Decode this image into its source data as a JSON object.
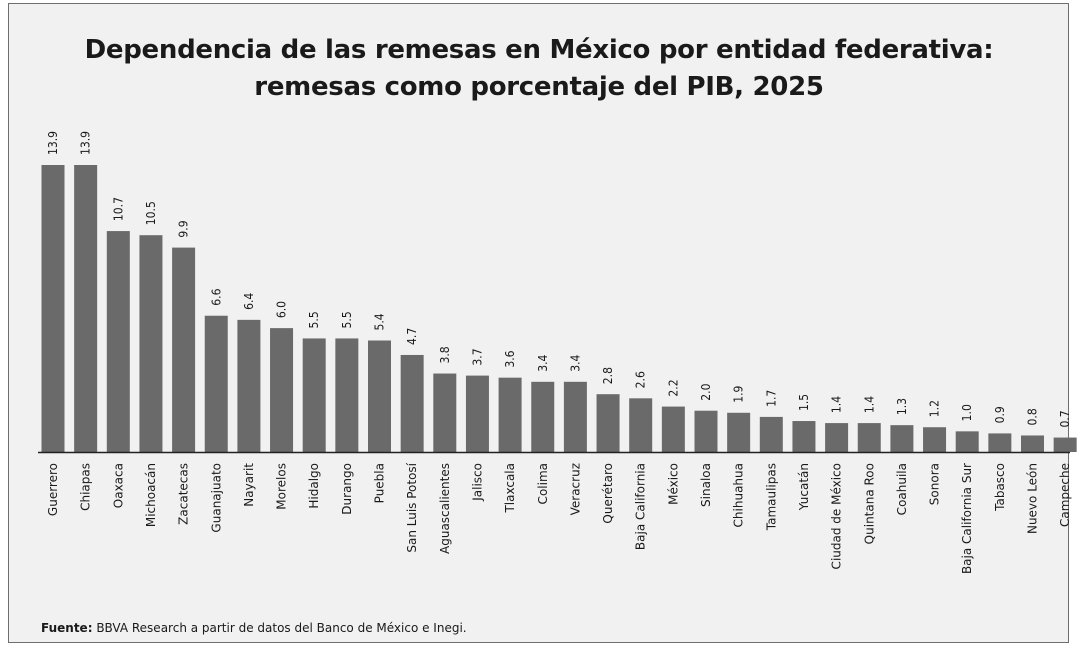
{
  "header": {
    "title_line1": "Dependencia de las remesas en México por entidad federativa:",
    "title_line2": "remesas como porcentaje del PIB, 2025"
  },
  "footer": {
    "source_label": "Fuente:",
    "source_text": " BBVA Research a partir de datos del Banco de México e Inegi."
  },
  "colors": {
    "bar": "#6a6a6a",
    "background": "#f1f1f1",
    "axis": "#222222",
    "text": "#1a1a1a"
  },
  "chart_data": {
    "type": "bar",
    "title": "Dependencia de las remesas en México por entidad federativa: remesas como porcentaje del PIB, 2025",
    "xlabel": "",
    "ylabel": "",
    "ylim": [
      0,
      14
    ],
    "grid": false,
    "legend": "none",
    "value_labels": true,
    "categories": [
      "Guerrero",
      "Chiapas",
      "Oaxaca",
      "Michoacán",
      "Zacatecas",
      "Guanajuato",
      "Nayarit",
      "Morelos",
      "Hidalgo",
      "Durango",
      "Puebla",
      "San Luis Potosí",
      "Aguascalientes",
      "Jalisco",
      "Tlaxcala",
      "Colima",
      "Veracruz",
      "Querétaro",
      "Baja California",
      "México",
      "Sinaloa",
      "Chihuahua",
      "Tamaulipas",
      "Yucatán",
      "Ciudad de México",
      "Quintana Roo",
      "Coahuila",
      "Sonora",
      "Baja California Sur",
      "Tabasco",
      "Nuevo León",
      "Campeche"
    ],
    "values": [
      13.9,
      13.9,
      10.7,
      10.5,
      9.9,
      6.6,
      6.4,
      6.0,
      5.5,
      5.5,
      5.4,
      4.7,
      3.8,
      3.7,
      3.6,
      3.4,
      3.4,
      2.8,
      2.6,
      2.2,
      2.0,
      1.9,
      1.7,
      1.5,
      1.4,
      1.4,
      1.3,
      1.2,
      1.0,
      0.9,
      0.8,
      0.7
    ],
    "value_label_text": [
      "13.9",
      "13.9",
      "10.7",
      "10.5",
      "9.9",
      "6.6",
      "6.4",
      "6.0",
      "5.5",
      "5.5",
      "5.4",
      "4.7",
      "3.8",
      "3.7",
      "3.6",
      "3.4",
      "3.4",
      "2.8",
      "2.6",
      "2.2",
      "2.0",
      "1.9",
      "1.7",
      "1.5",
      "1.4",
      "1.4",
      "1.3",
      "1.2",
      "1.0",
      "0.9",
      "0.8",
      "0.7"
    ]
  }
}
